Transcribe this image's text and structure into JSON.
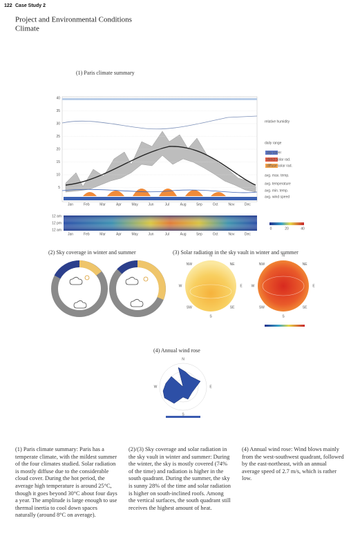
{
  "header": {
    "page_number": "122",
    "section": "Case Study 2",
    "title": "Project and Environmental Conditions",
    "subtitle": "Climate"
  },
  "figure1": {
    "caption": "(1) Paris climate summary",
    "y_ticks": [
      "40",
      "35",
      "30",
      "25",
      "20",
      "15",
      "10",
      "5"
    ],
    "months": [
      "Jan",
      "Feb",
      "Mar",
      "Apr",
      "May",
      "Jun",
      "Jul",
      "Aug",
      "Sep",
      "Oct",
      "Nov",
      "Dec"
    ],
    "legend": [
      "relative humidity",
      "daily range",
      "sky cover",
      "direct solar rad.",
      "diffuse solar rad.",
      "avg. max. temp.",
      "avg. temperature",
      "avg. min. temp.",
      "avg. wind speed"
    ],
    "heatmap_hours": [
      "12 am",
      "12 pm",
      "12 am"
    ],
    "heatmap_scale": [
      "0",
      "20",
      "40"
    ]
  },
  "figure2": {
    "caption": "(2) Sky coverage in winter and summer"
  },
  "figure3": {
    "caption": "(3) Solar radiation in the sky vault in winter and summer",
    "compass": [
      "N",
      "NE",
      "E",
      "SE",
      "S",
      "SW",
      "W",
      "NW"
    ]
  },
  "figure4": {
    "caption": "(4) Annual wind rose",
    "compass": [
      "N",
      "E",
      "S",
      "W"
    ]
  },
  "paragraphs": [
    "(1) Paris climate summary: Paris has a temperate climate, with the mildest summer of the four climates studied. Solar radiation is mostly diffuse due to the considerable cloud cover. During the hot period, the average high temperature is around 25°C, though it goes beyond 30°C about four days a year. The amplitude is large enough to use thermal inertia to cool down spaces naturally (around 8°C on average).",
    "(2)/(3) Sky coverage and solar radiation in the sky vault in winter and summer: During the winter, the sky is mostly covered (74% of the time) and radiation is higher in the south quadrant. During the summer, the sky is sunny 28% of the time and solar radiation is higher on south-inclined roofs. Among the vertical surfaces, the south quadrant still receives the highest amount of heat.",
    "(4) Annual wind rose: Wind blows mainly from the west-southwest quadrant, followed by the east-northeast, with an annual average speed of 2.7 m/s, which is rather low."
  ]
}
